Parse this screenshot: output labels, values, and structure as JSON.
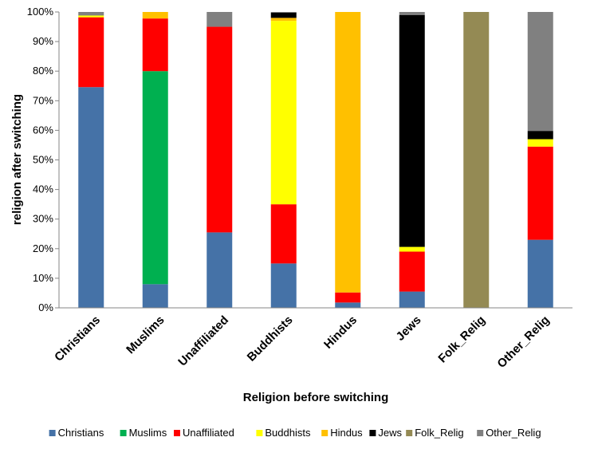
{
  "chart_data": {
    "type": "bar",
    "stacked": true,
    "categories": [
      "Christians",
      "Muslims",
      "Unaffiliated",
      "Buddhists",
      "Hindus",
      "Jews",
      "Folk_Relig",
      "Other_Relig"
    ],
    "series": [
      {
        "name": "Christians",
        "color": "#4572A7",
        "values": [
          74.6,
          8.0,
          25.5,
          15.0,
          1.8,
          5.5,
          0,
          23.0
        ]
      },
      {
        "name": "Muslims",
        "color": "#00B050",
        "values": [
          0,
          72.0,
          0,
          0,
          0,
          0,
          0,
          0
        ]
      },
      {
        "name": "Unaffiliated",
        "color": "#FF0000",
        "values": [
          23.6,
          17.8,
          69.5,
          20.0,
          3.4,
          13.5,
          0,
          31.5
        ]
      },
      {
        "name": "Buddhists",
        "color": "#FFFF00",
        "values": [
          0.6,
          0,
          0,
          62.0,
          0,
          1.6,
          0,
          2.5
        ]
      },
      {
        "name": "Hindus",
        "color": "#FFC000",
        "values": [
          0,
          2.2,
          0,
          1.0,
          94.8,
          0,
          0,
          0
        ]
      },
      {
        "name": "Jews",
        "color": "#000000",
        "values": [
          0,
          0,
          0,
          1.8,
          0,
          78.4,
          0,
          2.8
        ]
      },
      {
        "name": "Folk_Relig",
        "color": "#948A54",
        "values": [
          0,
          0,
          0,
          0,
          0,
          0,
          100,
          0
        ]
      },
      {
        "name": "Other_Relig",
        "color": "#808080",
        "values": [
          1.2,
          0,
          5.0,
          0.2,
          0,
          1.0,
          0,
          40.2
        ]
      }
    ],
    "xlabel": "Religion before switching",
    "ylabel": "religion after switching",
    "ylim": [
      0,
      100
    ],
    "yticks": [
      "0%",
      "10%",
      "20%",
      "30%",
      "40%",
      "50%",
      "60%",
      "70%",
      "80%",
      "90%",
      "100%"
    ],
    "grid": false,
    "legend_position": "bottom"
  }
}
